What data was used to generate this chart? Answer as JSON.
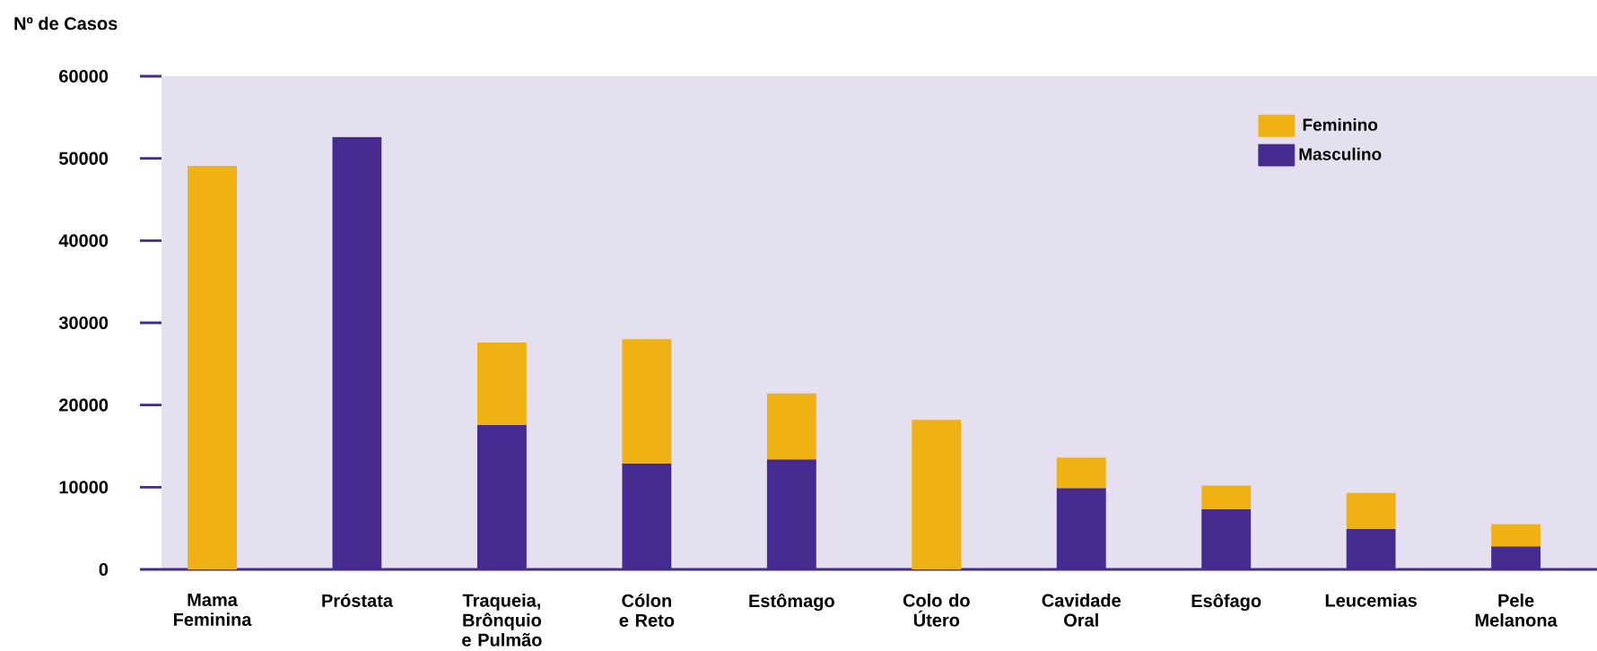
{
  "chart_data": {
    "type": "bar",
    "stacked": true,
    "ylabel": "Nº de Casos",
    "categories": [
      "Mama Feminina",
      "Próstata",
      "Traqueia, Brônquio e Pulmão",
      "Cólon e Reto",
      "Estômago",
      "Colo do Útero",
      "Cavidade Oral",
      "Esôfago",
      "Leucemias",
      "Pele Melanona"
    ],
    "series": [
      {
        "name": "Masculino",
        "color": "#452a8f",
        "values": [
          null,
          52600,
          17600,
          12900,
          13400,
          null,
          9900,
          7300,
          4900,
          2800
        ]
      },
      {
        "name": "Feminino",
        "color": "#f0b114",
        "values": [
          49100,
          null,
          10000,
          15100,
          8000,
          18200,
          3700,
          2900,
          4400,
          2700
        ]
      }
    ],
    "ylim": [
      0,
      60000
    ],
    "yticks": [
      0,
      10000,
      20000,
      30000,
      40000,
      50000,
      60000
    ],
    "legend": "top right"
  }
}
